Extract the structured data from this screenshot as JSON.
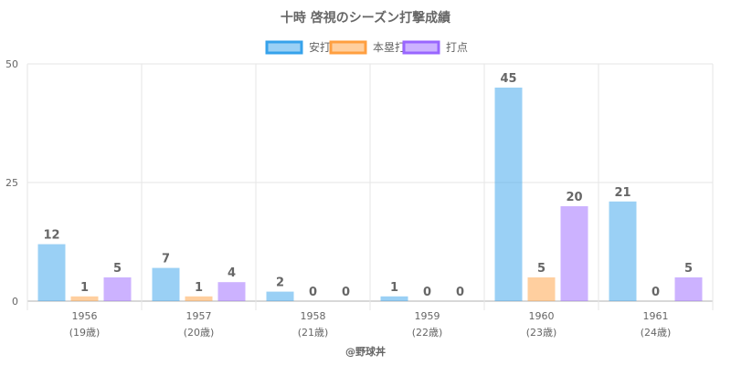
{
  "chart_data": {
    "type": "bar",
    "title": "十時 啓視のシーズン打撃成績",
    "categories": [
      "1956",
      "1957",
      "1958",
      "1959",
      "1960",
      "1961"
    ],
    "category_sublabels": [
      "(19歳)",
      "(20歳)",
      "(21歳)",
      "(22歳)",
      "(23歳)",
      "(24歳)"
    ],
    "series": [
      {
        "name": "安打",
        "values": [
          12,
          7,
          2,
          1,
          45,
          21
        ],
        "color": "#36a2eb"
      },
      {
        "name": "本塁打",
        "values": [
          1,
          1,
          0,
          0,
          5,
          0
        ],
        "color": "#ff9f40"
      },
      {
        "name": "打点",
        "values": [
          5,
          4,
          0,
          0,
          20,
          5
        ],
        "color": "#9966ff"
      }
    ],
    "ylim": [
      0,
      50
    ],
    "yticks": [
      0,
      25,
      50
    ],
    "grid": true,
    "legend_position": "top",
    "xlabel": "",
    "ylabel": ""
  },
  "footer": "@野球丼"
}
